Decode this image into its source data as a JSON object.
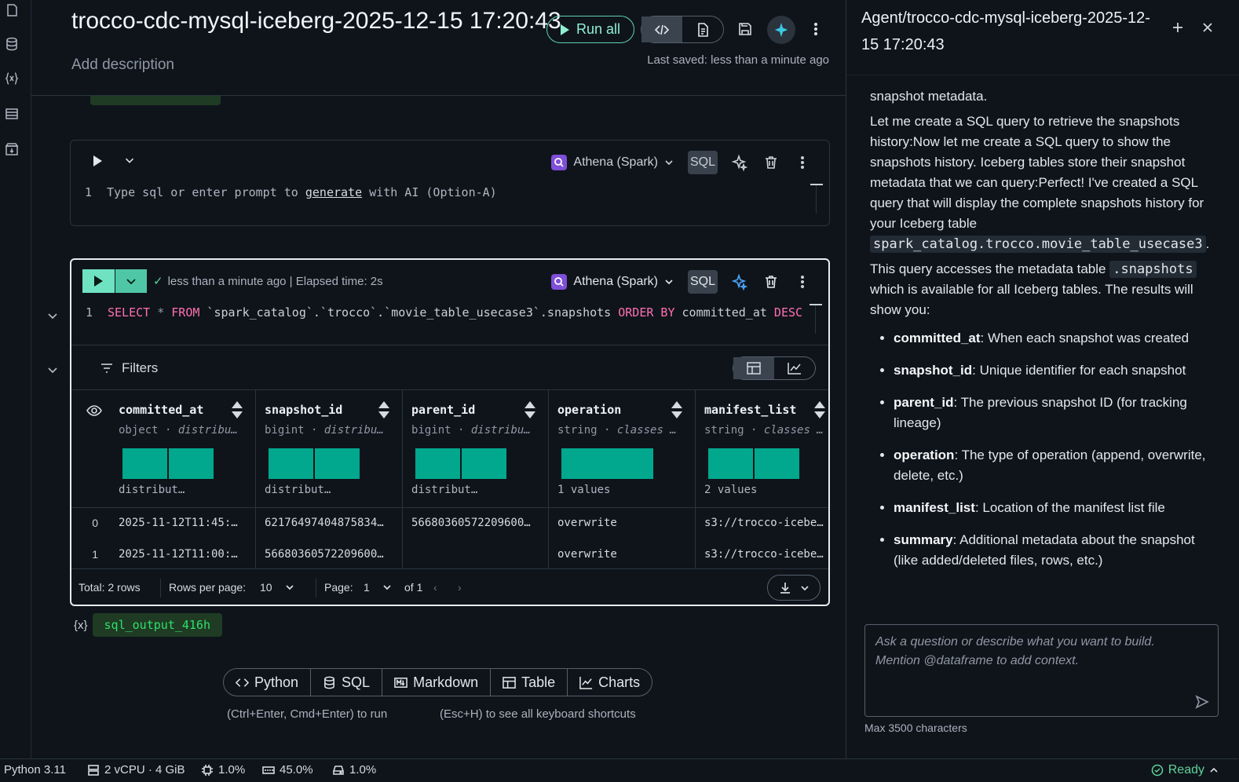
{
  "header": {
    "title": "trocco-cdc-mysql-iceberg-2025-12-15 17:20:43",
    "description_placeholder": "Add description",
    "run_all_label": "Run all",
    "last_saved": "Last saved: less than a minute ago"
  },
  "empty_cell": {
    "engine": "Athena (Spark)",
    "language": "SQL",
    "line_number": "1",
    "placeholder_before": "Type sql or enter prompt to ",
    "placeholder_link": "generate",
    "placeholder_after": " with AI (Option-A)"
  },
  "active_cell": {
    "status": "less than a minute ago | Elapsed time: 2s",
    "engine": "Athena (Spark)",
    "language": "SQL",
    "line_number": "1",
    "code": {
      "kw1": "SELECT",
      "star": " * ",
      "kw2": "FROM",
      "table": " `spark_catalog`.`trocco`.`movie_table_usecase3`.snapshots ",
      "kw3": "ORDER BY",
      "col": " committed_at ",
      "kw4": "DESC"
    },
    "filters_label": "Filters",
    "columns": [
      {
        "name": "committed_at",
        "type": "object",
        "dist": "distribu…",
        "summary": "distribut…",
        "cells": [
          "2025-11-12T11:45:…",
          "2025-11-12T11:00:…"
        ]
      },
      {
        "name": "snapshot_id",
        "type": "bigint",
        "dist": "distribu…",
        "summary": "distribut…",
        "cells": [
          "62176497404875834…",
          "56680360572209600…"
        ]
      },
      {
        "name": "parent_id",
        "type": "bigint",
        "dist": "distribu…",
        "summary": "distribut…",
        "cells": [
          "56680360572209600…",
          ""
        ]
      },
      {
        "name": "operation",
        "type": "string",
        "dist": "classes …",
        "summary": "1 values",
        "cells": [
          "overwrite",
          "overwrite"
        ]
      },
      {
        "name": "manifest_list",
        "type": "string",
        "dist": "classes …",
        "summary": "2 values",
        "cells": [
          "s3://trocco-icebe…",
          "s3://trocco-icebe…"
        ]
      }
    ],
    "row_indices": [
      "0",
      "1"
    ],
    "footer": {
      "total": "Total: 2 rows",
      "rows_per_page_label": "Rows per page:",
      "rows_per_page": "10",
      "page_label": "Page:",
      "page": "1",
      "of_pages": "of 1"
    }
  },
  "output_var": {
    "brace": "{x}",
    "name": "sql_output_416h"
  },
  "add_cell": {
    "python": "Python",
    "sql": "SQL",
    "markdown": "Markdown",
    "table": "Table",
    "charts": "Charts"
  },
  "hints": {
    "run": "(Ctrl+Enter, Cmd+Enter) to run",
    "shortcuts": "(Esc+H) to see all keyboard shortcuts"
  },
  "agent": {
    "title": "Agent/trocco-cdc-mysql-iceberg-2025-12-15 17:20:43",
    "p1": "snapshot metadata.",
    "p2": "Let me create a SQL query to retrieve the snapshots history:Now let me create a SQL query to show the snapshots history. Iceberg tables store their snapshot metadata that we can query:Perfect! I've created a SQL query that will display the complete snapshots history for your Iceberg table",
    "p2_code": "spark_catalog.trocco.movie_table_usecase3",
    "p3_before": "This query accesses the metadata table ",
    "p3_code": ".snapshots",
    "p3_after": " which is available for all Iceberg tables. The results will show you:",
    "bullets": [
      {
        "term": "committed_at",
        "desc": ": When each snapshot was created"
      },
      {
        "term": "snapshot_id",
        "desc": ": Unique identifier for each snapshot"
      },
      {
        "term": "parent_id",
        "desc": ": The previous snapshot ID (for tracking lineage)"
      },
      {
        "term": "operation",
        "desc": ": The type of operation (append, overwrite, delete, etc.)"
      },
      {
        "term": "manifest_list",
        "desc": ": Location of the manifest list file"
      },
      {
        "term": "summary",
        "desc": ": Additional metadata about the snapshot (like added/deleted files, rows, etc.)"
      }
    ],
    "prompt_placeholder": "Ask a question or describe what you want to build. Mention @dataframe to add context.",
    "max_chars": "Max 3500 characters"
  },
  "statusbar": {
    "python": "Python 3.11",
    "compute": "2 vCPU · 4 GiB",
    "cpu": "1.0%",
    "memory": "45.0%",
    "disk": "1.0%",
    "ready": "Ready"
  }
}
